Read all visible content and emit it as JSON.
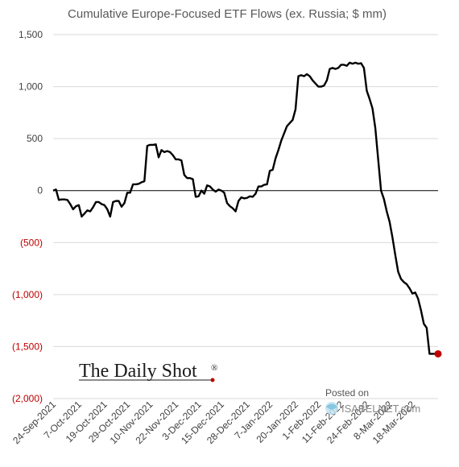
{
  "chart_data": {
    "type": "line",
    "title": "Cumulative Europe-Focused ETF Flows (ex. Russia; $ mm)",
    "ylim": [
      -2000,
      1500
    ],
    "grid": true,
    "yticks": [
      {
        "value": 1500,
        "label": "1,500",
        "negative": false
      },
      {
        "value": 1000,
        "label": "1,000",
        "negative": false
      },
      {
        "value": 500,
        "label": "500",
        "negative": false
      },
      {
        "value": 0,
        "label": "0",
        "negative": false
      },
      {
        "value": -500,
        "label": "(500)",
        "negative": true
      },
      {
        "value": -1000,
        "label": "(1,000)",
        "negative": true
      },
      {
        "value": -1500,
        "label": "(1,500)",
        "negative": true
      },
      {
        "value": -2000,
        "label": "(2,000)",
        "negative": true
      }
    ],
    "xticks": [
      {
        "label": "24-Sep-2021",
        "pos": 0
      },
      {
        "label": "7-Oct-2021",
        "pos": 9
      },
      {
        "label": "19-Oct-2021",
        "pos": 18
      },
      {
        "label": "29-Oct-2021",
        "pos": 26
      },
      {
        "label": "10-Nov-2021",
        "pos": 34
      },
      {
        "label": "22-Nov-2021",
        "pos": 43
      },
      {
        "label": "3-Dec-2021",
        "pos": 51
      },
      {
        "label": "15-Dec-2021",
        "pos": 59
      },
      {
        "label": "28-Dec-2021",
        "pos": 68
      },
      {
        "label": "7-Jan-2022",
        "pos": 76
      },
      {
        "label": "20-Jan-2022",
        "pos": 85
      },
      {
        "label": "1-Feb-2022",
        "pos": 93
      },
      {
        "label": "11-Feb-2022",
        "pos": 101
      },
      {
        "label": "24-Feb-2022",
        "pos": 110
      },
      {
        "label": "8-Mar-2022",
        "pos": 118
      },
      {
        "label": "18-Mar-2022",
        "pos": 126
      }
    ],
    "x_count": 136,
    "series": [
      {
        "values": [
          0,
          10,
          -90,
          -85,
          -85,
          -90,
          -130,
          -180,
          -150,
          -140,
          -250,
          -220,
          -190,
          -200,
          -160,
          -110,
          -110,
          -130,
          -140,
          -180,
          -250,
          -110,
          -100,
          -100,
          -155,
          -120,
          -20,
          -20,
          60,
          60,
          65,
          80,
          90,
          430,
          440,
          440,
          445,
          320,
          390,
          370,
          380,
          370,
          340,
          300,
          300,
          290,
          150,
          120,
          120,
          110,
          -60,
          -55,
          0,
          -30,
          50,
          40,
          10,
          -10,
          10,
          0,
          -20,
          -120,
          -150,
          -170,
          -200,
          -100,
          -65,
          -75,
          -70,
          -55,
          -60,
          -30,
          40,
          40,
          55,
          60,
          190,
          200,
          310,
          390,
          480,
          550,
          620,
          650,
          680,
          780,
          1100,
          1110,
          1100,
          1120,
          1100,
          1060,
          1030,
          1000,
          1000,
          1010,
          1060,
          1170,
          1180,
          1170,
          1180,
          1210,
          1210,
          1200,
          1230,
          1220,
          1230,
          1220,
          1225,
          1180,
          960,
          880,
          790,
          600,
          300,
          0,
          -80,
          -200,
          -300,
          -450,
          -620,
          -780,
          -850,
          -880,
          -900,
          -940,
          -990,
          -980,
          -1040,
          -1150,
          -1280,
          -1320,
          -1570,
          -1570,
          -1570,
          -1570
        ]
      }
    ],
    "end_point_color": "#c00000",
    "negative_label_color": "#c00000",
    "positive_label_color": "#404040",
    "line_color": "#000000"
  },
  "branding": {
    "daily_shot": "The Daily Shot",
    "registered": "®",
    "posted_on": "Posted on",
    "isabelnet": "ISABELNET.com"
  }
}
